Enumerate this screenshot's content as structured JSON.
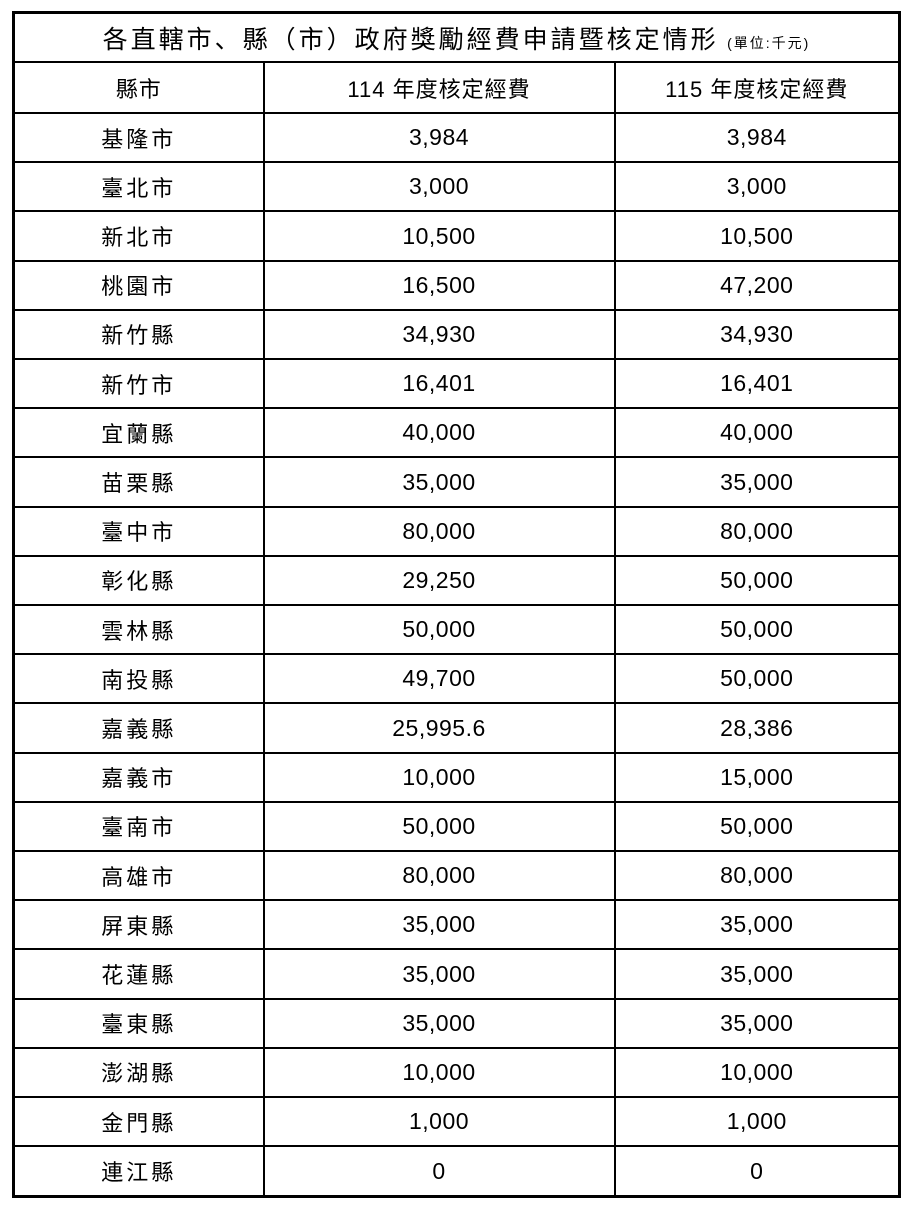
{
  "document": {
    "title": "各直轄市、縣（市）政府獎勵經費申請暨核定情形",
    "title_unit": "(單位:千元)"
  },
  "columns": {
    "county": "縣市",
    "y114": "114 年度核定經費",
    "y115": "115 年度核定經費"
  },
  "rows": [
    {
      "name": "基隆市",
      "y114": "3,984",
      "y115": "3,984"
    },
    {
      "name": "臺北市",
      "y114": "3,000",
      "y115": "3,000"
    },
    {
      "name": "新北市",
      "y114": "10,500",
      "y115": "10,500"
    },
    {
      "name": "桃園市",
      "y114": "16,500",
      "y115": "47,200"
    },
    {
      "name": "新竹縣",
      "y114": "34,930",
      "y115": "34,930"
    },
    {
      "name": "新竹市",
      "y114": "16,401",
      "y115": "16,401"
    },
    {
      "name": "宜蘭縣",
      "y114": "40,000",
      "y115": "40,000"
    },
    {
      "name": "苗栗縣",
      "y114": "35,000",
      "y115": "35,000"
    },
    {
      "name": "臺中市",
      "y114": "80,000",
      "y115": "80,000"
    },
    {
      "name": "彰化縣",
      "y114": "29,250",
      "y115": "50,000"
    },
    {
      "name": "雲林縣",
      "y114": "50,000",
      "y115": "50,000"
    },
    {
      "name": "南投縣",
      "y114": "49,700",
      "y115": "50,000"
    },
    {
      "name": "嘉義縣",
      "y114": "25,995.6",
      "y115": "28,386"
    },
    {
      "name": "嘉義市",
      "y114": "10,000",
      "y115": "15,000"
    },
    {
      "name": "臺南市",
      "y114": "50,000",
      "y115": "50,000"
    },
    {
      "name": "高雄市",
      "y114": "80,000",
      "y115": "80,000"
    },
    {
      "name": "屏東縣",
      "y114": "35,000",
      "y115": "35,000"
    },
    {
      "name": "花蓮縣",
      "y114": "35,000",
      "y115": "35,000"
    },
    {
      "name": "臺東縣",
      "y114": "35,000",
      "y115": "35,000"
    },
    {
      "name": "澎湖縣",
      "y114": "10,000",
      "y115": "10,000"
    },
    {
      "name": "金門縣",
      "y114": "1,000",
      "y115": "1,000"
    },
    {
      "name": "連江縣",
      "y114": "0",
      "y115": "0"
    }
  ],
  "colors": {
    "background": "#ffffff",
    "text": "#000000",
    "border": "#000000"
  }
}
